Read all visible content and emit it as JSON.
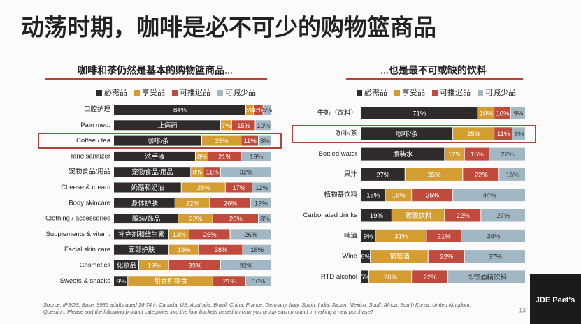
{
  "page_title": "动荡时期，咖啡是必不可少的购物篮商品",
  "chart_data": [
    {
      "type": "stacked-bar-h",
      "title": "咖啡和茶仍然是基本的购物篮商品...",
      "categories": [
        "口腔护理",
        "Pain med.",
        "Coffee / tea",
        "Hand sanitizer",
        "宠物食品/用品",
        "Cheese & cream",
        "Body skincare",
        "Clothing / accessories",
        "Supplements & vitam.",
        "Facial skin care",
        "Cosmetics",
        "Sweets & snacks"
      ],
      "xlim": [
        0,
        100
      ],
      "series": [
        {
          "name": "必需品",
          "color": "#2e2b2a",
          "values": [
            84,
            68,
            56,
            52,
            49,
            43,
            39,
            41,
            35,
            35,
            16,
            9
          ],
          "value_labels": [
            "84%",
            "止痛药",
            "咖啡/茶",
            "洗手液",
            "宠物食品/用品",
            "奶酪和奶油",
            "身体护肤",
            "服装/饰品",
            "补充剂和维生素",
            "面部护肤",
            "化妆品",
            "9%"
          ]
        },
        {
          "name": "享受品",
          "color": "#d39d32",
          "values": [
            5,
            7,
            25,
            8,
            8,
            28,
            22,
            22,
            13,
            19,
            19,
            54
          ],
          "value_labels": [
            "5%",
            "7%",
            "25%",
            "8%",
            "8%",
            "28%",
            "22%",
            "22%",
            "13%",
            "19%",
            "19%",
            "甜食和零食"
          ]
        },
        {
          "name": "可推迟品",
          "color": "#c04a3c",
          "values": [
            6,
            15,
            11,
            21,
            11,
            17,
            26,
            29,
            26,
            28,
            33,
            21
          ],
          "value_labels": [
            "6%",
            "15%",
            "11%",
            "21%",
            "11%",
            "17%",
            "26%",
            "29%",
            "26%",
            "28%",
            "33%",
            "21%"
          ]
        },
        {
          "name": "可减少品",
          "color": "#a2b7c4",
          "values": [
            5,
            10,
            8,
            19,
            32,
            12,
            13,
            8,
            26,
            18,
            32,
            16
          ],
          "value_labels": [
            "5%",
            "10%",
            "8%",
            "19%",
            "32%",
            "12%",
            "13%",
            "8%",
            "26%",
            "18%",
            "32%",
            "16%"
          ]
        }
      ]
    },
    {
      "type": "stacked-bar-h",
      "title": "...也是最不可或缺的饮料",
      "categories": [
        "牛奶（饮料）",
        "咖啡/茶",
        "Bottled water",
        "果汁",
        "植物基饮料",
        "Carbonated drinks",
        "啤酒",
        "Wine",
        "RTD alcohol"
      ],
      "xlim": [
        0,
        100
      ],
      "series": [
        {
          "name": "必需品",
          "color": "#2e2b2a",
          "values": [
            71,
            56,
            51,
            27,
            15,
            19,
            9,
            6,
            5
          ],
          "value_labels": [
            "71%",
            "咖啡/茶",
            "瓶装水",
            "27%",
            "15%",
            "19%",
            "9%",
            "6%",
            "5%"
          ]
        },
        {
          "name": "享受品",
          "color": "#d39d32",
          "values": [
            10,
            25,
            12,
            35,
            16,
            32,
            31,
            35,
            26
          ],
          "value_labels": [
            "10%",
            "25%",
            "12%",
            "35%",
            "16%",
            "碳酸饮料",
            "31%",
            "葡萄酒",
            "26%"
          ]
        },
        {
          "name": "可推迟品",
          "color": "#c04a3c",
          "values": [
            10,
            11,
            15,
            22,
            25,
            22,
            21,
            22,
            22
          ],
          "value_labels": [
            "10%",
            "11%",
            "15%",
            "22%",
            "25%",
            "22%",
            "21%",
            "22%",
            "22%"
          ]
        },
        {
          "name": "可减少品",
          "color": "#a2b7c4",
          "values": [
            9,
            8,
            22,
            16,
            44,
            27,
            39,
            37,
            47
          ],
          "value_labels": [
            "9%",
            "8%",
            "22%",
            "16%",
            "44%",
            "27%",
            "39%",
            "37%",
            "即饮酒精饮料"
          ]
        }
      ]
    }
  ],
  "source": "Source: IPSOS. Base: 9986 adults aged 16-74 in Canada, US, Australia, Brazil, China, France, Germany, Italy, Spain, India, Japan, Mexico, South Africa, South Korea, United Kingdom.",
  "question": "Question: Please sort the following product categories into the four buckets based on how you group each product in making a new purchase?",
  "page_number": "13",
  "logo": "JDE Peet's"
}
